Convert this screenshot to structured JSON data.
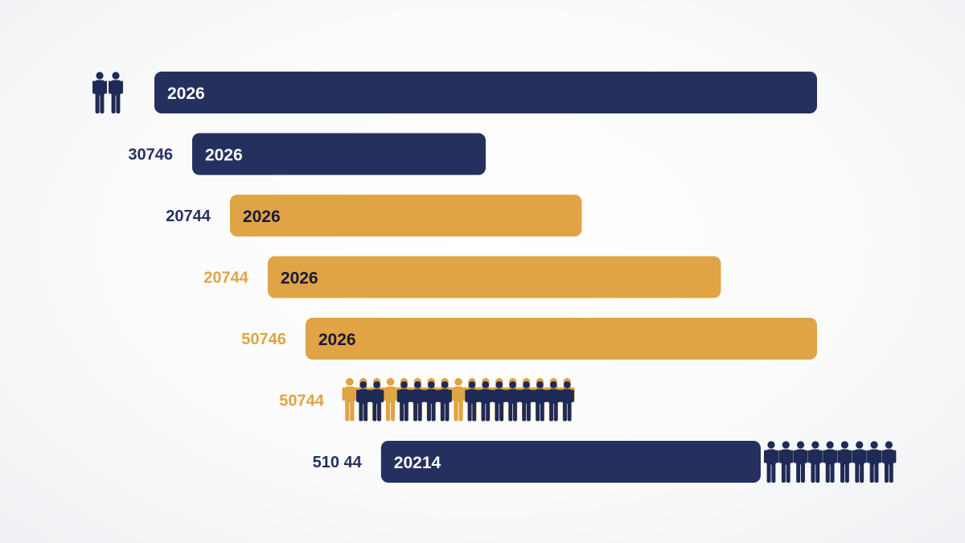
{
  "colors": {
    "navy": "#25305f",
    "gold": "#e0a444",
    "bar_text": "#16193a",
    "bar_text_light": "#ffffff",
    "people": "#1f2a56"
  },
  "chart_data": {
    "type": "bar",
    "orientation": "horizontal",
    "title": "",
    "xlabel": "",
    "ylabel": "",
    "grid": false,
    "legend": "none",
    "rows": [
      {
        "label": "",
        "label_color": "navy",
        "bar_text": "2026",
        "bar_color": "navy",
        "start": 0,
        "end": 1.0,
        "people_left": 2
      },
      {
        "label": "30746",
        "label_color": "navy",
        "bar_text": "2026",
        "bar_color": "navy",
        "start": 0.057,
        "end": 0.5
      },
      {
        "label": "20744",
        "label_color": "navy",
        "bar_text": "2026",
        "bar_color": "gold",
        "start": 0.114,
        "end": 0.645
      },
      {
        "label": "20744",
        "label_color": "gold",
        "bar_text": "2026",
        "bar_color": "gold",
        "start": 0.171,
        "end": 0.855
      },
      {
        "label": "50746",
        "label_color": "gold",
        "bar_text": "2026",
        "bar_color": "gold",
        "start": 0.228,
        "end": 1.0
      },
      {
        "label": "50744",
        "label_color": "gold",
        "bar_text": "",
        "bar_color": "none",
        "start": 0.285,
        "end": 0.62,
        "people_strip": 17
      },
      {
        "label": "510 44",
        "label_color": "navy",
        "bar_text": "20214",
        "bar_color": "navy",
        "start": 0.342,
        "end": 0.915,
        "people_right": 9
      }
    ]
  }
}
